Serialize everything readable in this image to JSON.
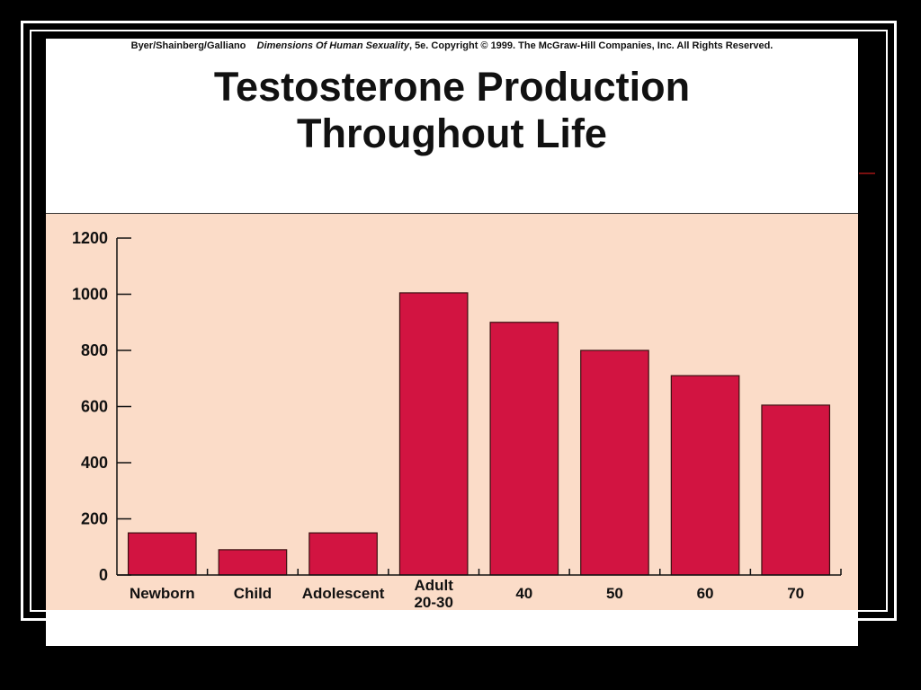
{
  "credit": {
    "authors": "Byer/Shainberg/Galliano",
    "book": "Dimensions Of Human Sexuality",
    "rest": ", 5e. Copyright © 1999. The McGraw-Hill Companies, Inc. All Rights Reserved."
  },
  "colors": {
    "bar": "#d21441",
    "plot_bg": "#fbdcc8"
  },
  "chart_data": {
    "type": "bar",
    "title": "Testosterone Production Throughout Life",
    "title_lines": [
      "Testosterone Production",
      "Throughout Life"
    ],
    "categories": [
      [
        "Newborn"
      ],
      [
        "Child"
      ],
      [
        "Adolescent"
      ],
      [
        "Adult",
        "20-30"
      ],
      [
        "40"
      ],
      [
        "50"
      ],
      [
        "60"
      ],
      [
        "70"
      ]
    ],
    "values": [
      150,
      90,
      150,
      1005,
      900,
      800,
      710,
      605
    ],
    "yticks": [
      0,
      200,
      400,
      600,
      800,
      1000,
      1200
    ],
    "ylim": [
      0,
      1200
    ],
    "xlabel": "",
    "ylabel": "",
    "grid": false,
    "legend": "none"
  }
}
